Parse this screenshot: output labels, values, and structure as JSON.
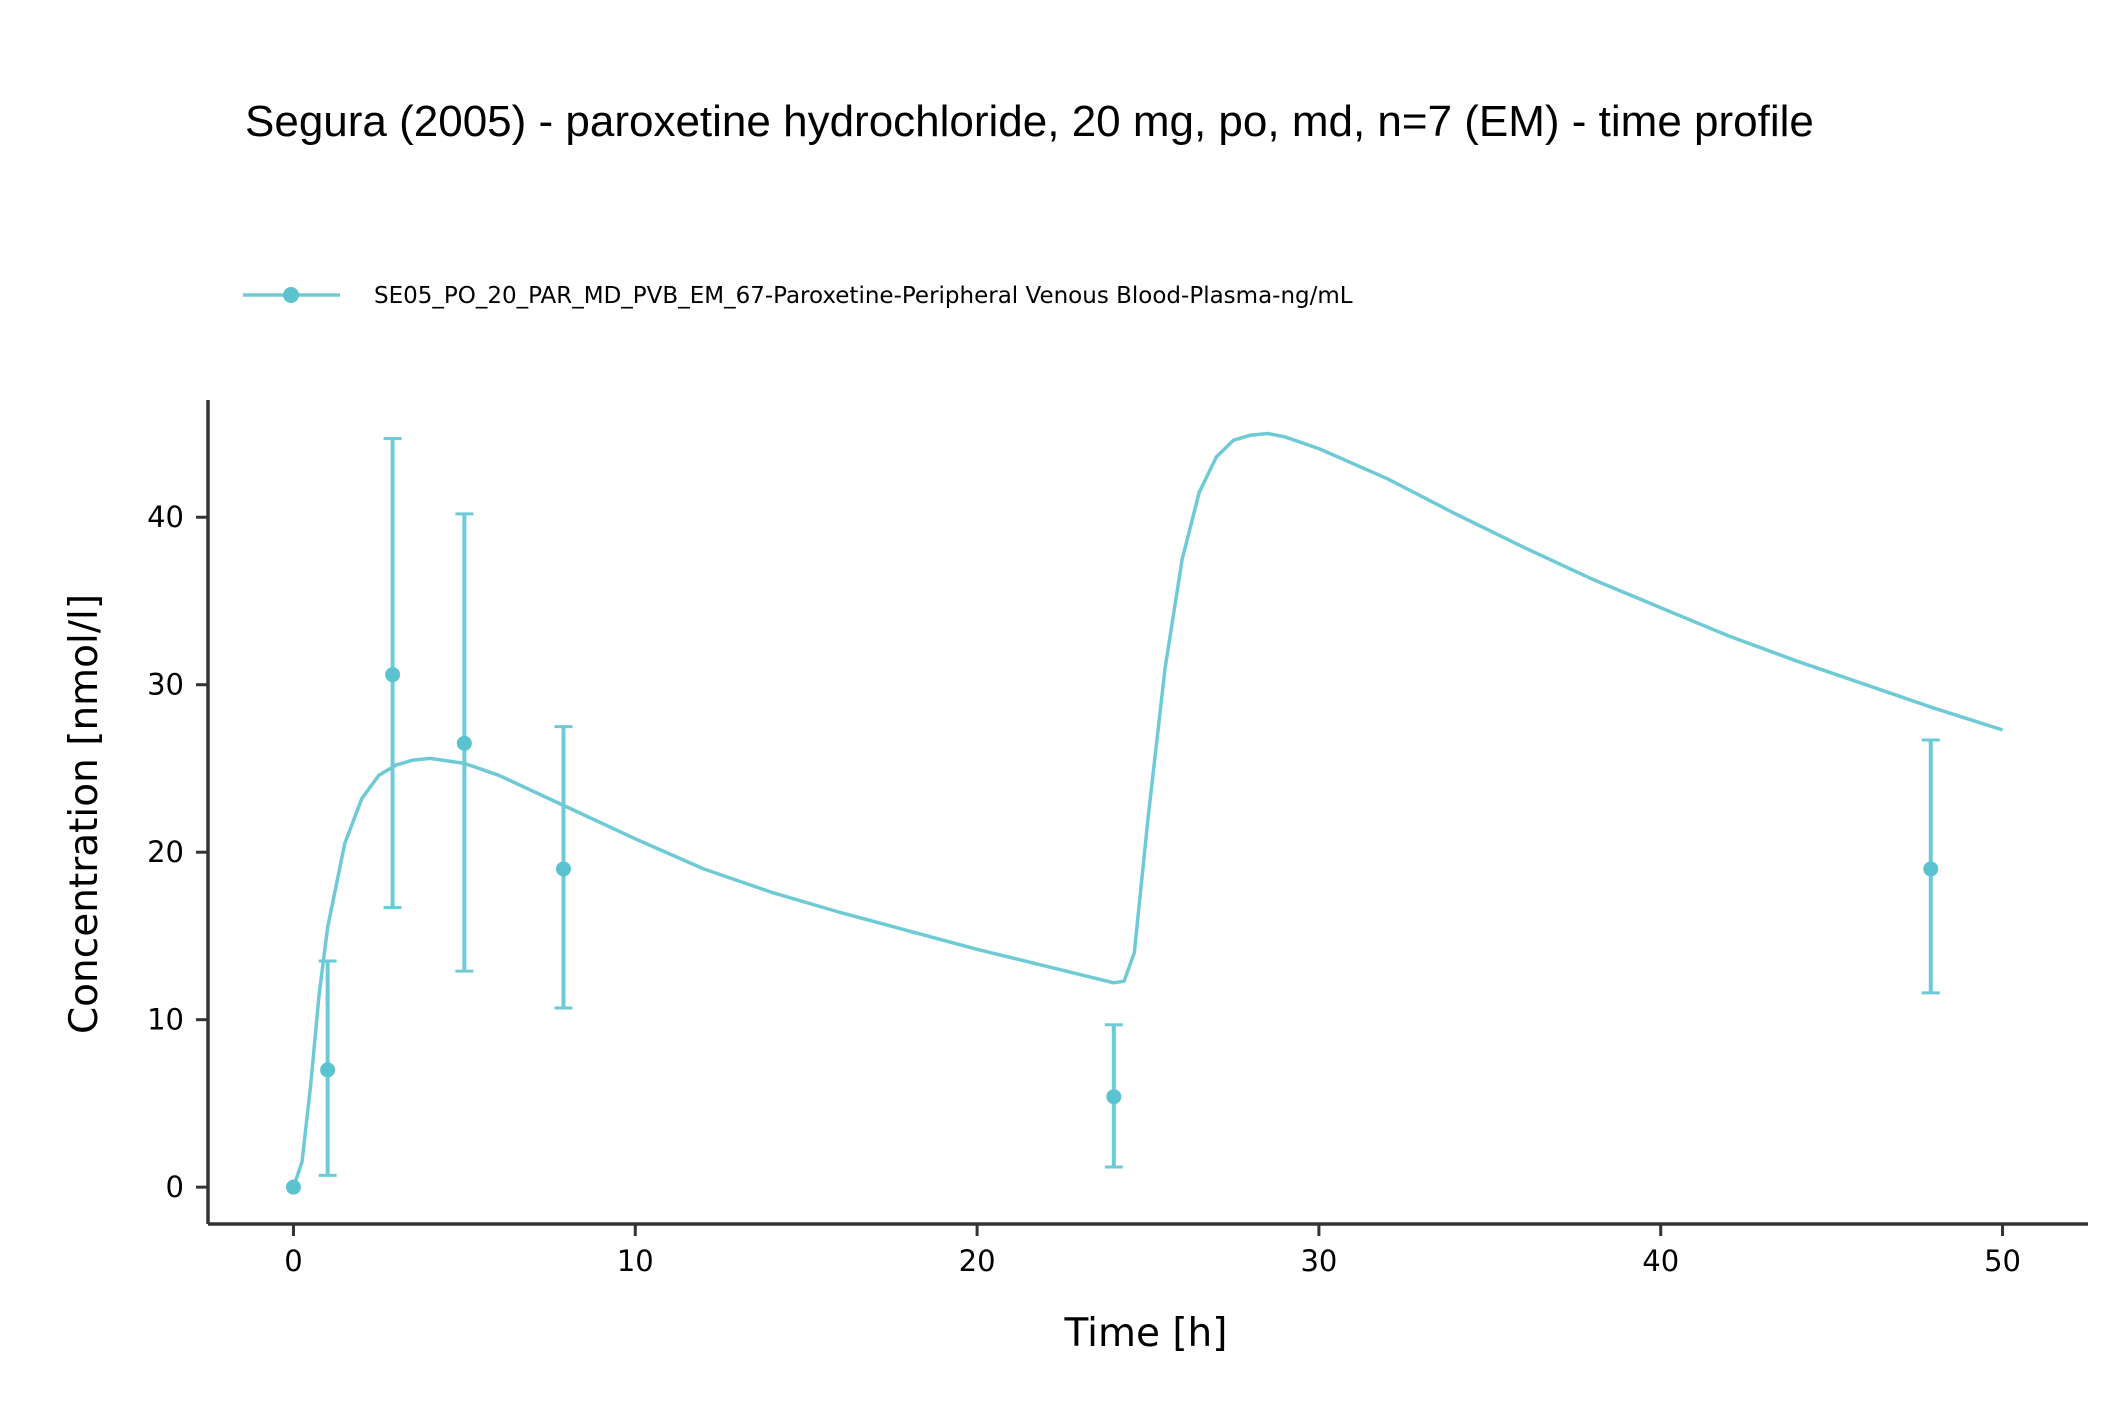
{
  "colors": {
    "series": "#6ecbd6",
    "points": "#5bc3d0",
    "axis": "#333333"
  },
  "chart_data": {
    "type": "line",
    "title": "Segura (2005) - paroxetine hydrochloride, 20 mg, po, md, n=7 (EM) - time profile",
    "xlabel": "Time [h]",
    "ylabel": "Concentration [nmol/l]",
    "xlim": [
      -2.5,
      52.5
    ],
    "ylim": [
      -2.2,
      47.0
    ],
    "xticks": [
      0,
      10,
      20,
      30,
      40,
      50
    ],
    "yticks": [
      0,
      10,
      20,
      30,
      40
    ],
    "grid": false,
    "legend_position": "top-left",
    "legend": [
      "SE05_PO_20_PAR_MD_PVB_EM_67-Paroxetine-Peripheral Venous Blood-Plasma-ng/mL"
    ],
    "simulated_line": {
      "x": [
        0,
        0.25,
        0.5,
        0.75,
        1,
        1.5,
        2,
        2.5,
        3,
        3.5,
        4,
        5,
        6,
        8,
        10,
        12,
        14,
        16,
        18,
        20,
        22,
        24,
        24.3,
        24.6,
        25,
        25.5,
        26,
        26.5,
        27,
        27.5,
        28,
        28.5,
        29,
        30,
        32,
        34,
        36,
        38,
        40,
        42,
        44,
        46,
        48,
        50
      ],
      "y": [
        0,
        1.5,
        6.0,
        11.5,
        15.5,
        20.5,
        23.2,
        24.6,
        25.2,
        25.5,
        25.6,
        25.3,
        24.6,
        22.7,
        20.8,
        19.0,
        17.6,
        16.4,
        15.3,
        14.2,
        13.2,
        12.2,
        12.3,
        14.0,
        22.0,
        31.0,
        37.5,
        41.5,
        43.6,
        44.6,
        44.9,
        45.0,
        44.8,
        44.1,
        42.3,
        40.2,
        38.2,
        36.3,
        34.6,
        32.9,
        31.4,
        30.0,
        28.6,
        27.3
      ]
    },
    "observed": {
      "name": "SE05_PO_20_PAR_MD_PVB_EM_67-Paroxetine-Peripheral Venous Blood-Plasma-ng/mL",
      "x": [
        0,
        1,
        2.9,
        5,
        7.9,
        24,
        47.9
      ],
      "y": [
        0,
        7.0,
        30.6,
        26.5,
        19.0,
        5.4,
        19.0
      ],
      "lower": [
        null,
        0.7,
        16.7,
        12.9,
        10.7,
        1.2,
        11.6
      ],
      "upper": [
        null,
        13.5,
        44.7,
        40.2,
        27.5,
        9.7,
        26.7
      ]
    }
  }
}
